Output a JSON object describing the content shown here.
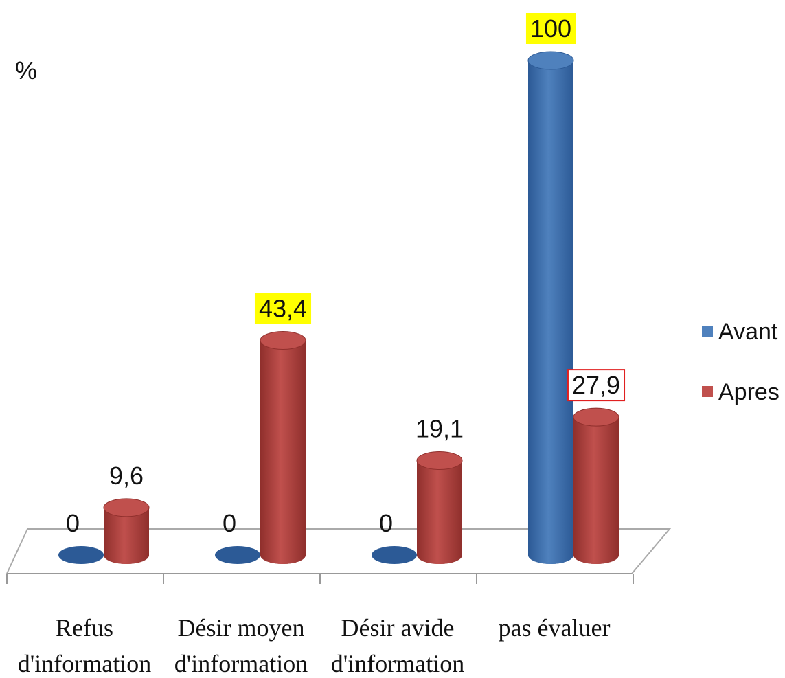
{
  "chart_data": {
    "type": "bar3d",
    "y_label": "%",
    "categories": [
      "Refus d'information",
      "Désir moyen d'information",
      "Désir avide d'information",
      "pas évaluer"
    ],
    "ylim": [
      0,
      100
    ],
    "legend": "right",
    "series": [
      {
        "name": "Avant",
        "color": "#4f81bd",
        "dark": "#2c5a96",
        "values": [
          0,
          0,
          0,
          100
        ],
        "value_labels": [
          "0",
          "0",
          "0",
          "100"
        ],
        "label_background": [
          null,
          null,
          null,
          "#ffff00"
        ],
        "label_border": [
          null,
          null,
          null,
          null
        ]
      },
      {
        "name": "Apres",
        "color": "#c0504d",
        "dark": "#8f2f2c",
        "values": [
          9.6,
          43.4,
          19.1,
          27.9
        ],
        "value_labels": [
          "9,6",
          "43,4",
          "19,1",
          "27,9"
        ],
        "label_background": [
          null,
          "#ffff00",
          null,
          null
        ],
        "label_border": [
          null,
          null,
          null,
          "#e02020"
        ]
      }
    ]
  }
}
